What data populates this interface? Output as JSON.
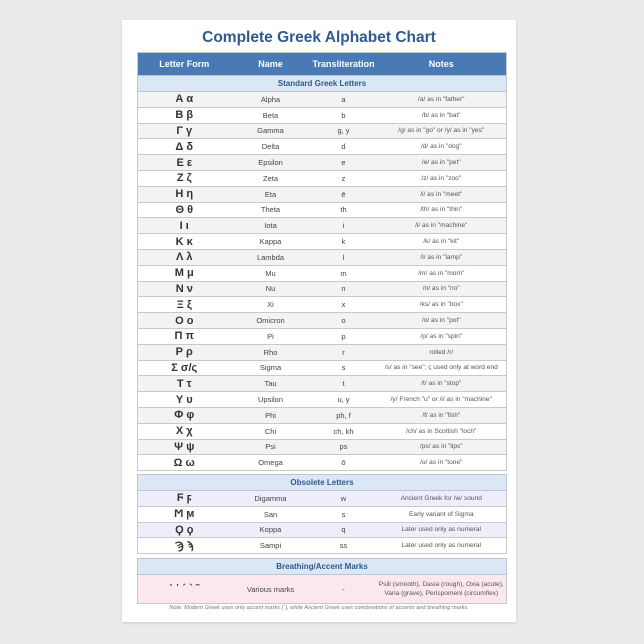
{
  "title": "Complete Greek Alphabet Chart",
  "headers": [
    "Letter Form",
    "Name",
    "Transliteration",
    "Notes"
  ],
  "sections": {
    "standard": "Standard Greek Letters",
    "obsolete": "Obsolete Letters",
    "breathing": "Breathing/Accent Marks"
  },
  "standard": [
    [
      "Α α",
      "Alpha",
      "a",
      "/a/ as in \"father\""
    ],
    [
      "Β β",
      "Beta",
      "b",
      "/b/ as in \"bat\""
    ],
    [
      "Γ γ",
      "Gamma",
      "g, y",
      "/g/ as in \"go\" or /y/ as in \"yes\""
    ],
    [
      "Δ δ",
      "Delta",
      "d",
      "/d/ as in \"dog\""
    ],
    [
      "Ε ε",
      "Epsilon",
      "e",
      "/e/ as in \"pet\""
    ],
    [
      "Ζ ζ",
      "Zeta",
      "z",
      "/z/ as in \"zoo\""
    ],
    [
      "Η η",
      "Eta",
      "ē",
      "/i/ as in \"meet\""
    ],
    [
      "Θ θ",
      "Theta",
      "th",
      "/th/ as in \"thin\""
    ],
    [
      "Ι ι",
      "Iota",
      "i",
      "/i/ as in \"machine\""
    ],
    [
      "Κ κ",
      "Kappa",
      "k",
      "/k/ as in \"kit\""
    ],
    [
      "Λ λ",
      "Lambda",
      "l",
      "/l/ as in \"lamp\""
    ],
    [
      "Μ μ",
      "Mu",
      "m",
      "/m/ as in \"mom\""
    ],
    [
      "Ν ν",
      "Nu",
      "n",
      "/n/ as in \"no\""
    ],
    [
      "Ξ ξ",
      "Xi",
      "x",
      "/ks/ as in \"box\""
    ],
    [
      "Ο ο",
      "Omicron",
      "o",
      "/o/ as in \"pot\""
    ],
    [
      "Π π",
      "Pi",
      "p",
      "/p/ as in \"spin\""
    ],
    [
      "Ρ ρ",
      "Rho",
      "r",
      "rolled /r/"
    ],
    [
      "Σ σ/ς",
      "Sigma",
      "s",
      "/s/ as in \"see\"; ς used only at word end"
    ],
    [
      "Τ τ",
      "Tau",
      "t",
      "/t/ as in \"stop\""
    ],
    [
      "Υ υ",
      "Upsilon",
      "u, y",
      "/y/ French \"u\" or /i/ as in \"machine\""
    ],
    [
      "Φ φ",
      "Phi",
      "ph, f",
      "/f/ as in \"fish\""
    ],
    [
      "Χ χ",
      "Chi",
      "ch, kh",
      "/ch/ as in Scottish \"loch\""
    ],
    [
      "Ψ ψ",
      "Psi",
      "ps",
      "/ps/ as in \"lips\""
    ],
    [
      "Ω ω",
      "Omega",
      "ō",
      "/o/ as in \"tone\""
    ]
  ],
  "obsolete": [
    [
      "Ϝ ϝ",
      "Digamma",
      "w",
      "Ancient Greek for /w/ sound"
    ],
    [
      "Ϻ ϻ",
      "San",
      "s",
      "Early variant of Sigma"
    ],
    [
      "Ϙ ϙ",
      "Koppa",
      "q",
      "Later used only as numeral"
    ],
    [
      "Ϡ ϡ",
      "Sampi",
      "ss",
      "Later used only as numeral"
    ]
  ],
  "breathing": [
    [
      "᾿ ῾ ´ ` ῀",
      "Various marks",
      "-",
      "Psili (smooth), Dasia (rough), Oxia (acute), Varia (grave), Perispomeni (circumflex)"
    ]
  ],
  "note": "Note: Modern Greek uses only accent marks (΄), while Ancient Greek uses combinations of accents and breathing marks."
}
